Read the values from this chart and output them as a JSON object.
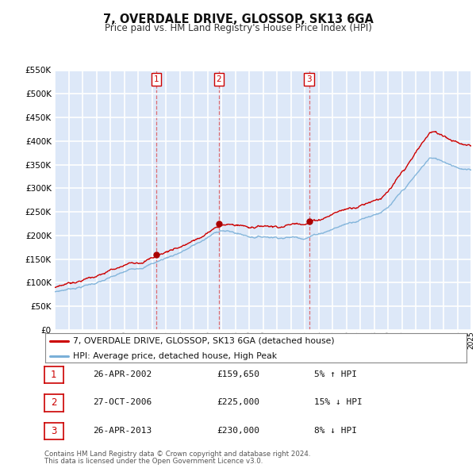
{
  "title": "7, OVERDALE DRIVE, GLOSSOP, SK13 6GA",
  "subtitle": "Price paid vs. HM Land Registry's House Price Index (HPI)",
  "ylim": [
    0,
    550000
  ],
  "yticks": [
    0,
    50000,
    100000,
    150000,
    200000,
    250000,
    300000,
    350000,
    400000,
    450000,
    500000,
    550000
  ],
  "ytick_labels": [
    "£0",
    "£50K",
    "£100K",
    "£150K",
    "£200K",
    "£250K",
    "£300K",
    "£350K",
    "£400K",
    "£450K",
    "£500K",
    "£550K"
  ],
  "background_color": "#dde8f8",
  "grid_color": "#ffffff",
  "sale_color": "#cc0000",
  "hpi_color": "#7ab0d8",
  "sale_label": "7, OVERDALE DRIVE, GLOSSOP, SK13 6GA (detached house)",
  "hpi_label": "HPI: Average price, detached house, High Peak",
  "transactions": [
    {
      "num": 1,
      "date": "26-APR-2002",
      "price": 159650,
      "year": 2002.32,
      "pct": "5%",
      "dir": "↑",
      "vs": "HPI"
    },
    {
      "num": 2,
      "date": "27-OCT-2006",
      "price": 225000,
      "year": 2006.82,
      "pct": "15%",
      "dir": "↓",
      "vs": "HPI"
    },
    {
      "num": 3,
      "date": "26-APR-2013",
      "price": 230000,
      "year": 2013.32,
      "pct": "8%",
      "dir": "↓",
      "vs": "HPI"
    }
  ],
  "footnote1": "Contains HM Land Registry data © Crown copyright and database right 2024.",
  "footnote2": "This data is licensed under the Open Government Licence v3.0.",
  "xstart": 1995,
  "xend": 2025
}
